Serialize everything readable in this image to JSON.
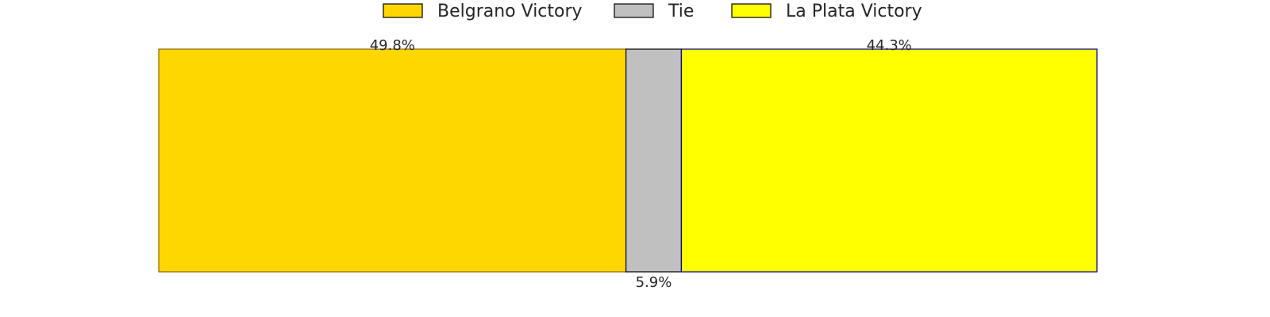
{
  "chart_data": {
    "type": "bar",
    "orientation": "horizontal-stacked",
    "categories": [
      "Belgrano Victory",
      "Tie",
      "La Plata Victory"
    ],
    "values": [
      49.8,
      5.9,
      44.3
    ],
    "value_labels": [
      "49.8%",
      "5.9%",
      "44.3%"
    ],
    "colors": {
      "Belgrano Victory": "#FFD700",
      "Tie": "#C0C0C0",
      "La Plata Victory": "#FFFF00"
    },
    "edge_colors": {
      "Belgrano Victory": "#8B6508",
      "Tie": "#000000",
      "La Plata Victory": "#00008B"
    },
    "legend": {
      "placement": "top-center",
      "entries": [
        "Belgrano Victory",
        "Tie",
        "La Plata Victory"
      ]
    },
    "xlim": [
      0,
      100
    ],
    "grid": false
  }
}
